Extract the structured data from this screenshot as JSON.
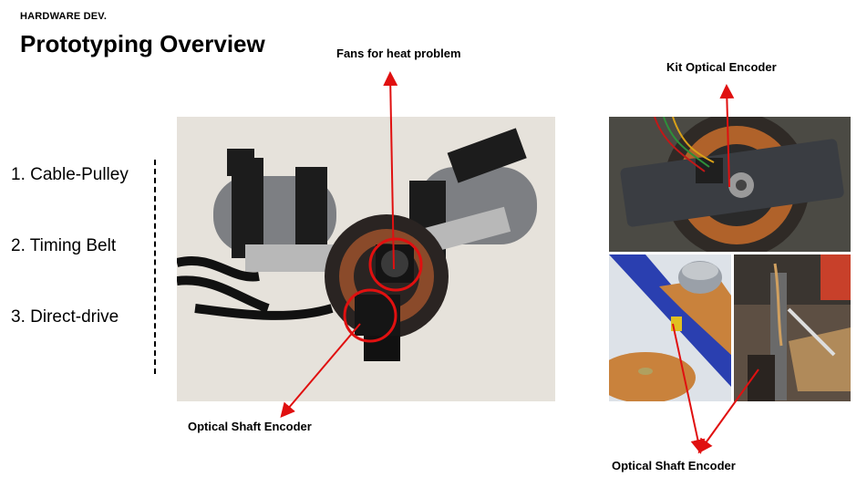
{
  "header": {
    "section_label": "HARDWARE DEV.",
    "title": "Prototyping Overview"
  },
  "list": {
    "items": [
      "1. Cable-Pulley",
      "2. Timing Belt",
      "3. Direct-drive"
    ]
  },
  "callouts": {
    "fans": "Fans for heat problem",
    "optical_left": "Optical Shaft Encoder",
    "kit": "Kit Optical Encoder",
    "optical_right": "Optical Shaft Encoder"
  },
  "colors": {
    "arrow": "#e01010",
    "text": "#000000"
  },
  "icons": [
    "photo-exoskeleton-prototype",
    "photo-kit-optical-encoder",
    "photo-encoder-cad-model",
    "photo-encoder-mounted"
  ]
}
